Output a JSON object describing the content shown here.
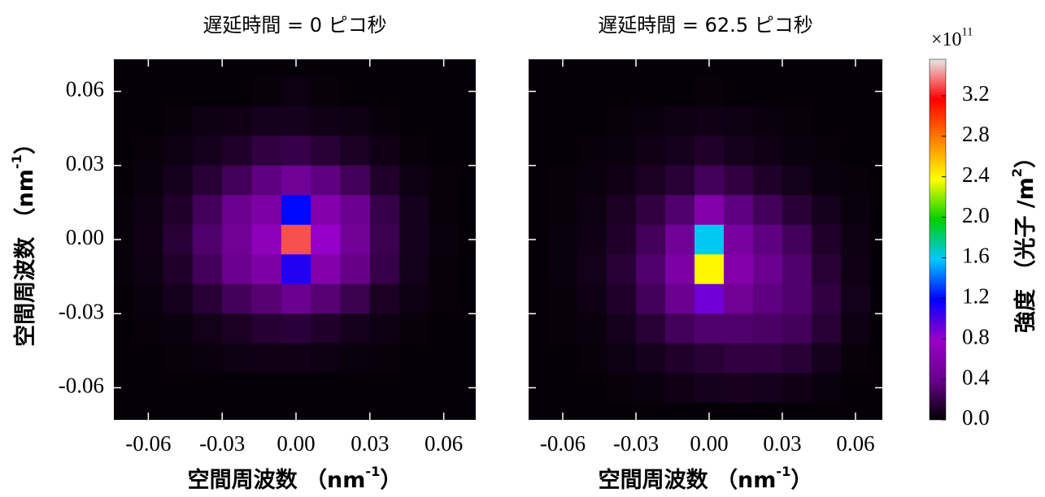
{
  "chart_data": [
    {
      "type": "heatmap",
      "title": "遅延時間 = 0 ピコ秒",
      "xlabel": {
        "text": "空間周波数 （nm",
        "sup": "-1",
        "end": "）"
      },
      "ylabel": {
        "text": "空間周波数 （nm",
        "sup": "-1",
        "end": "）"
      },
      "xlim": [
        -0.074,
        0.073
      ],
      "ylim": [
        -0.073,
        0.073
      ],
      "xticks": [
        -0.06,
        -0.03,
        {
          "value": 0,
          "label": "0.00"
        },
        0.03,
        0.06
      ],
      "yticks": [
        -0.06,
        -0.03,
        {
          "value": 0,
          "label": "0.00"
        },
        0.03,
        0.06
      ],
      "yticklabels": true,
      "colormap": [
        "#000000",
        "#6a008f",
        "#9a00c8",
        "#0000ff",
        "#00c8ff",
        "#00d000",
        "#ffff00",
        "#ff8000",
        "#ff0000",
        "#e8e8e8"
      ],
      "clim": [
        0,
        3.56
      ],
      "x": [
        -0.072,
        -0.06,
        -0.048,
        -0.036,
        -0.024,
        -0.012,
        0,
        0.012,
        0.024,
        0.036,
        0.048,
        0.06,
        0.072
      ],
      "y": [
        0.072,
        0.06,
        0.048,
        0.036,
        0.024,
        0.012,
        0,
        -0.012,
        -0.024,
        -0.036,
        -0.048,
        -0.06,
        -0.072
      ],
      "values": [
        [
          0.02,
          0.02,
          0.02,
          0.02,
          0.02,
          0.02,
          0.02,
          0.02,
          0.02,
          0.02,
          0.02,
          0.02,
          0.02
        ],
        [
          0.02,
          0.02,
          0.02,
          0.02,
          0.02,
          0.03,
          0.05,
          0.03,
          0.02,
          0.02,
          0.02,
          0.02,
          0.02
        ],
        [
          0.02,
          0.02,
          0.03,
          0.05,
          0.06,
          0.08,
          0.08,
          0.06,
          0.05,
          0.03,
          0.02,
          0.02,
          0.02
        ],
        [
          0.02,
          0.03,
          0.05,
          0.08,
          0.12,
          0.18,
          0.2,
          0.15,
          0.1,
          0.06,
          0.03,
          0.02,
          0.02
        ],
        [
          0.02,
          0.04,
          0.08,
          0.15,
          0.25,
          0.35,
          0.45,
          0.35,
          0.25,
          0.12,
          0.05,
          0.03,
          0.02
        ],
        [
          0.03,
          0.05,
          0.12,
          0.25,
          0.4,
          0.55,
          1.2,
          0.6,
          0.4,
          0.2,
          0.08,
          0.03,
          0.02
        ],
        [
          0.03,
          0.06,
          0.15,
          0.3,
          0.45,
          0.7,
          3.3,
          0.8,
          0.45,
          0.22,
          0.08,
          0.04,
          0.02
        ],
        [
          0.03,
          0.05,
          0.12,
          0.25,
          0.4,
          0.55,
          1.1,
          0.6,
          0.38,
          0.2,
          0.07,
          0.03,
          0.02
        ],
        [
          0.02,
          0.04,
          0.08,
          0.15,
          0.25,
          0.32,
          0.4,
          0.32,
          0.22,
          0.1,
          0.05,
          0.03,
          0.02
        ],
        [
          0.02,
          0.03,
          0.04,
          0.07,
          0.1,
          0.14,
          0.16,
          0.12,
          0.08,
          0.05,
          0.03,
          0.02,
          0.02
        ],
        [
          0.02,
          0.02,
          0.03,
          0.04,
          0.05,
          0.06,
          0.06,
          0.05,
          0.04,
          0.03,
          0.02,
          0.02,
          0.02
        ],
        [
          0.02,
          0.02,
          0.02,
          0.02,
          0.02,
          0.02,
          0.02,
          0.02,
          0.02,
          0.02,
          0.02,
          0.02,
          0.02
        ],
        [
          0.02,
          0.02,
          0.02,
          0.02,
          0.02,
          0.02,
          0.02,
          0.02,
          0.02,
          0.02,
          0.02,
          0.02,
          0.02
        ]
      ]
    },
    {
      "type": "heatmap",
      "title": "遅延時間 = 62.5 ピコ秒",
      "xlabel": {
        "text": "空間周波数 （nm",
        "sup": "-1",
        "end": "）"
      },
      "xlim": [
        -0.074,
        0.071
      ],
      "ylim": [
        -0.073,
        0.073
      ],
      "xticks": [
        -0.06,
        -0.03,
        {
          "value": 0,
          "label": "0.00"
        },
        0.03,
        0.06
      ],
      "yticks": [
        -0.06,
        -0.03,
        0,
        0.03,
        0.06
      ],
      "yticklabels": false,
      "colormap": [
        "#000000",
        "#6a008f",
        "#9a00c8",
        "#0000ff",
        "#00c8ff",
        "#00d000",
        "#ffff00",
        "#ff8000",
        "#ff0000",
        "#e8e8e8"
      ],
      "clim": [
        0,
        3.56
      ],
      "x": [
        -0.072,
        -0.06,
        -0.048,
        -0.036,
        -0.024,
        -0.012,
        0,
        0.012,
        0.024,
        0.036,
        0.048,
        0.06,
        0.072
      ],
      "y": [
        0.072,
        0.06,
        0.048,
        0.036,
        0.024,
        0.012,
        0,
        -0.012,
        -0.024,
        -0.036,
        -0.048,
        -0.06,
        -0.072
      ],
      "values": [
        [
          0.02,
          0.02,
          0.02,
          0.02,
          0.02,
          0.02,
          0.02,
          0.02,
          0.02,
          0.02,
          0.02,
          0.02,
          0.02
        ],
        [
          0.02,
          0.02,
          0.02,
          0.02,
          0.02,
          0.02,
          0.03,
          0.02,
          0.02,
          0.02,
          0.02,
          0.02,
          0.02
        ],
        [
          0.02,
          0.02,
          0.02,
          0.03,
          0.04,
          0.05,
          0.06,
          0.05,
          0.04,
          0.03,
          0.02,
          0.02,
          0.02
        ],
        [
          0.02,
          0.02,
          0.03,
          0.04,
          0.06,
          0.08,
          0.12,
          0.08,
          0.06,
          0.04,
          0.03,
          0.02,
          0.02
        ],
        [
          0.02,
          0.03,
          0.04,
          0.06,
          0.1,
          0.15,
          0.25,
          0.18,
          0.12,
          0.07,
          0.04,
          0.03,
          0.02
        ],
        [
          0.02,
          0.03,
          0.05,
          0.1,
          0.18,
          0.3,
          0.6,
          0.35,
          0.25,
          0.15,
          0.08,
          0.04,
          0.02
        ],
        [
          0.02,
          0.04,
          0.06,
          0.12,
          0.25,
          0.45,
          1.6,
          0.5,
          0.35,
          0.25,
          0.12,
          0.05,
          0.02
        ],
        [
          0.02,
          0.04,
          0.07,
          0.15,
          0.3,
          0.55,
          2.4,
          0.6,
          0.4,
          0.3,
          0.15,
          0.06,
          0.02
        ],
        [
          0.02,
          0.03,
          0.06,
          0.12,
          0.25,
          0.4,
          0.9,
          0.45,
          0.35,
          0.3,
          0.18,
          0.07,
          0.02
        ],
        [
          0.02,
          0.03,
          0.04,
          0.08,
          0.15,
          0.25,
          0.3,
          0.3,
          0.28,
          0.25,
          0.15,
          0.05,
          0.02
        ],
        [
          0.02,
          0.02,
          0.03,
          0.05,
          0.08,
          0.12,
          0.15,
          0.18,
          0.18,
          0.15,
          0.08,
          0.03,
          0.02
        ],
        [
          0.02,
          0.02,
          0.02,
          0.03,
          0.04,
          0.06,
          0.08,
          0.09,
          0.08,
          0.06,
          0.04,
          0.02,
          0.02
        ],
        [
          0.02,
          0.02,
          0.02,
          0.02,
          0.02,
          0.02,
          0.02,
          0.02,
          0.02,
          0.02,
          0.02,
          0.02,
          0.02
        ]
      ],
      "colorbar": {
        "label": {
          "text": "強度 （光子 /m",
          "sup": "2",
          "end": "）"
        },
        "multiplier": {
          "text": "×10",
          "sup": "11"
        },
        "ticks": [
          {
            "value": 0,
            "label": "0.0"
          },
          0.4,
          0.8,
          1.2,
          1.6,
          {
            "value": 2,
            "label": "2.0"
          },
          2.4,
          2.8,
          3.2
        ]
      }
    }
  ]
}
